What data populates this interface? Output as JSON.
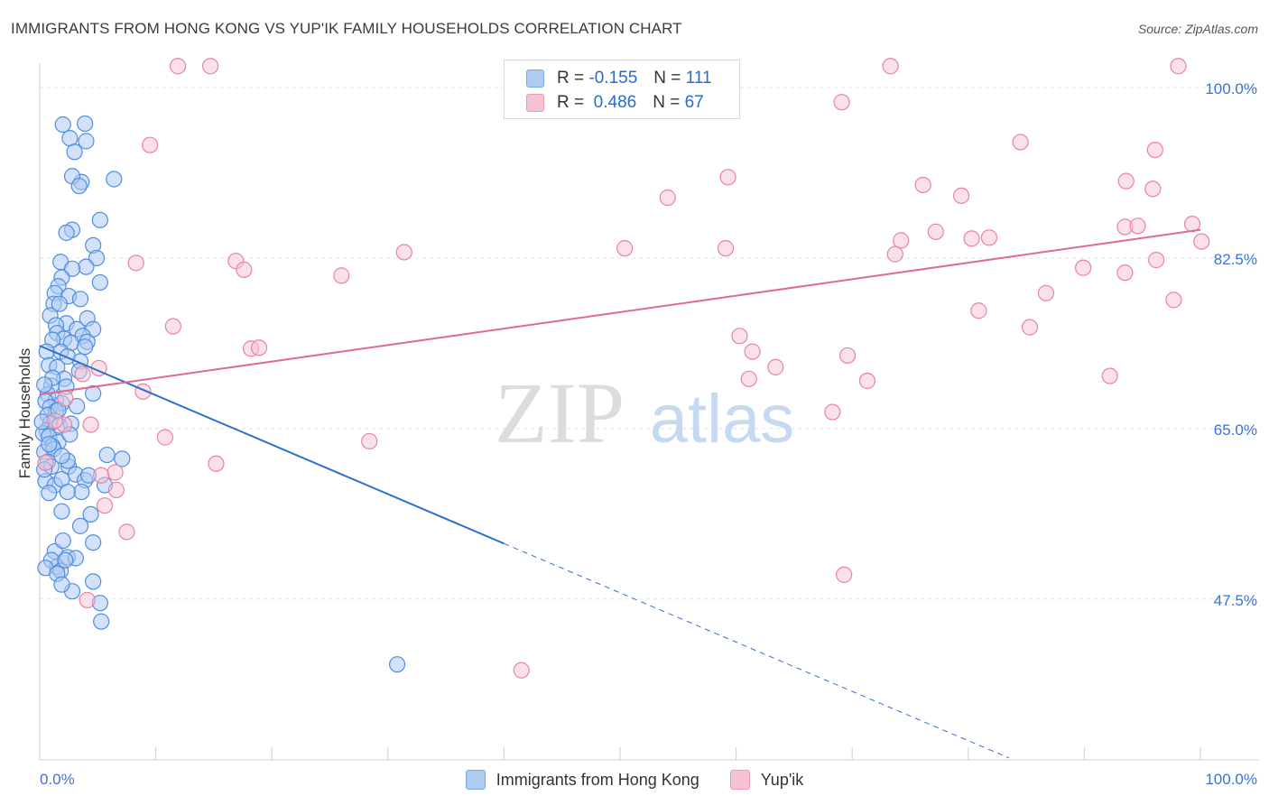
{
  "header": {
    "title": "IMMIGRANTS FROM HONG KONG VS YUP'IK FAMILY HOUSEHOLDS CORRELATION CHART",
    "source": "Source: ZipAtlas.com"
  },
  "watermark": {
    "zip": "ZIP",
    "atlas": "atlas"
  },
  "legend_top": {
    "rows": [
      {
        "r_label": "R =",
        "r_value": "-0.155",
        "n_label": "N =",
        "n_value": "111"
      },
      {
        "r_label": "R =",
        "r_value": "0.486",
        "n_label": "N =",
        "n_value": "67"
      }
    ]
  },
  "colors": {
    "blue_fill": "#aecbf2",
    "blue_stroke": "#4f8ee0",
    "blue_line": "#2f6fd1",
    "pink_fill": "#f6c3d3",
    "pink_stroke": "#e8849f",
    "pink_line": "#e06a90",
    "axis_label": "#3a72d6",
    "grid": "#e2e2e2"
  },
  "chart_data": {
    "type": "scatter",
    "title": "IMMIGRANTS FROM HONG KONG VS YUP'IK FAMILY HOUSEHOLDS CORRELATION CHART",
    "xlabel": "",
    "ylabel": "Family Households",
    "xlim": [
      0,
      100
    ],
    "ylim": [
      31,
      102.5
    ],
    "x_tick_labels": [
      "0.0%",
      "100.0%"
    ],
    "y_ticks": [
      {
        "value": 47.5,
        "label": "47.5%"
      },
      {
        "value": 65.0,
        "label": "65.0%"
      },
      {
        "value": 82.5,
        "label": "82.5%"
      },
      {
        "value": 100.0,
        "label": "100.0%"
      }
    ],
    "series": [
      {
        "name": "Immigrants from Hong Kong",
        "r": -0.155,
        "n": 111,
        "trend": {
          "x0": 0,
          "y0": 73.5,
          "x1": 40,
          "y1": 53.2,
          "dash_x1": 83.5,
          "dash_y1": 31.2
        },
        "points": [
          [
            4,
            94.5
          ],
          [
            3.9,
            96.3
          ],
          [
            2,
            96.2
          ],
          [
            2.6,
            94.8
          ],
          [
            3,
            93.4
          ],
          [
            3.6,
            90.3
          ],
          [
            2.8,
            90.9
          ],
          [
            6.4,
            90.6
          ],
          [
            3.4,
            89.9
          ],
          [
            5.2,
            86.4
          ],
          [
            2.8,
            85.4
          ],
          [
            2.3,
            85.1
          ],
          [
            4.6,
            83.8
          ],
          [
            4.9,
            82.5
          ],
          [
            1.8,
            82.1
          ],
          [
            4,
            81.6
          ],
          [
            2.8,
            81.4
          ],
          [
            1.9,
            80.5
          ],
          [
            1.6,
            79.6
          ],
          [
            5.2,
            80
          ],
          [
            1.3,
            78.9
          ],
          [
            2.5,
            78.6
          ],
          [
            3.5,
            78.3
          ],
          [
            1.2,
            77.8
          ],
          [
            1.7,
            77.8
          ],
          [
            0.9,
            76.6
          ],
          [
            4.1,
            76.3
          ],
          [
            2.3,
            75.8
          ],
          [
            1.4,
            75.6
          ],
          [
            3.2,
            75.2
          ],
          [
            4.6,
            75.2
          ],
          [
            1.5,
            74.8
          ],
          [
            2.1,
            74.2
          ],
          [
            3.7,
            74.5
          ],
          [
            1.1,
            74.1
          ],
          [
            4.1,
            73.9
          ],
          [
            2.7,
            73.8
          ],
          [
            3.9,
            73.4
          ],
          [
            1.8,
            72.9
          ],
          [
            0.6,
            72.9
          ],
          [
            2.4,
            72.4
          ],
          [
            3.5,
            71.9
          ],
          [
            0.8,
            71.5
          ],
          [
            1.5,
            71.3
          ],
          [
            3.4,
            70.9
          ],
          [
            2.1,
            70.1
          ],
          [
            1,
            69.4
          ],
          [
            2.3,
            69.3
          ],
          [
            0.7,
            68.5
          ],
          [
            1.4,
            67.9
          ],
          [
            0.5,
            67.8
          ],
          [
            1.9,
            67.6
          ],
          [
            0.9,
            67.2
          ],
          [
            1.4,
            66.8
          ],
          [
            0.7,
            66.4
          ],
          [
            0.9,
            65.5
          ],
          [
            1.7,
            65.3
          ],
          [
            0.6,
            64.8
          ],
          [
            0.3,
            64.5
          ],
          [
            0.2,
            65.7
          ],
          [
            0.8,
            64.2
          ],
          [
            1.6,
            63.6
          ],
          [
            1.1,
            63.2
          ],
          [
            0.4,
            62.6
          ],
          [
            1.2,
            62.9
          ],
          [
            0.7,
            61.6
          ],
          [
            1,
            61.1
          ],
          [
            2.5,
            61.1
          ],
          [
            3.1,
            60.3
          ],
          [
            0.5,
            59.6
          ],
          [
            1.3,
            59.2
          ],
          [
            3.9,
            59.7
          ],
          [
            5.6,
            59.2
          ],
          [
            3.6,
            58.5
          ],
          [
            1.9,
            56.5
          ],
          [
            4.4,
            56.2
          ],
          [
            3.5,
            55
          ],
          [
            4.6,
            53.3
          ],
          [
            7.1,
            61.9
          ],
          [
            1.9,
            59.8
          ],
          [
            0.8,
            63.4
          ],
          [
            2.4,
            61.7
          ],
          [
            1.5,
            50.8
          ],
          [
            2.4,
            51.8
          ],
          [
            1.3,
            52.4
          ],
          [
            1,
            51.5
          ],
          [
            1.8,
            50.4
          ],
          [
            0.5,
            50.7
          ],
          [
            1.5,
            50.1
          ],
          [
            3.1,
            51.7
          ],
          [
            2.2,
            51.5
          ],
          [
            4.6,
            49.3
          ],
          [
            5.2,
            47.1
          ],
          [
            5.3,
            45.2
          ],
          [
            2.8,
            48.3
          ],
          [
            1.9,
            49
          ],
          [
            2,
            53.5
          ],
          [
            0.8,
            58.4
          ],
          [
            2.4,
            58.5
          ],
          [
            4.2,
            60.2
          ],
          [
            5.8,
            62.3
          ],
          [
            2.7,
            65.5
          ],
          [
            3.2,
            67.3
          ],
          [
            4.6,
            68.6
          ],
          [
            1.1,
            70.2
          ],
          [
            0.4,
            60.8
          ],
          [
            1.6,
            66.9
          ],
          [
            2.6,
            64.4
          ],
          [
            0.4,
            69.5
          ],
          [
            1.9,
            62.2
          ],
          [
            30.8,
            40.8
          ]
        ]
      },
      {
        "name": "Yup'ik",
        "r": 0.486,
        "n": 67,
        "trend": {
          "x0": 0,
          "y0": 68.5,
          "x1": 100,
          "y1": 85.4
        },
        "points": [
          [
            11.9,
            102.2
          ],
          [
            14.7,
            102.2
          ],
          [
            73.3,
            102.2
          ],
          [
            98.1,
            102.2
          ],
          [
            69.1,
            98.5
          ],
          [
            9.5,
            94.1
          ],
          [
            84.5,
            94.4
          ],
          [
            96.1,
            93.6
          ],
          [
            59.3,
            90.8
          ],
          [
            76.1,
            90
          ],
          [
            93.6,
            90.4
          ],
          [
            79.4,
            88.9
          ],
          [
            95.9,
            89.6
          ],
          [
            54.1,
            88.7
          ],
          [
            93.5,
            85.7
          ],
          [
            94.6,
            85.8
          ],
          [
            77.2,
            85.2
          ],
          [
            81.8,
            84.6
          ],
          [
            80.3,
            84.5
          ],
          [
            99.3,
            86
          ],
          [
            74.2,
            84.3
          ],
          [
            100.1,
            84.2
          ],
          [
            31.4,
            83.1
          ],
          [
            50.4,
            83.5
          ],
          [
            59.1,
            83.5
          ],
          [
            73.7,
            82.9
          ],
          [
            16.9,
            82.2
          ],
          [
            8.3,
            82
          ],
          [
            17.6,
            81.3
          ],
          [
            89.9,
            81.5
          ],
          [
            93.5,
            81
          ],
          [
            96.2,
            82.3
          ],
          [
            26,
            80.7
          ],
          [
            86.7,
            78.9
          ],
          [
            97.7,
            78.2
          ],
          [
            80.9,
            77.1
          ],
          [
            85.3,
            75.4
          ],
          [
            11.5,
            75.5
          ],
          [
            18.2,
            73.2
          ],
          [
            18.9,
            73.3
          ],
          [
            60.3,
            74.5
          ],
          [
            69.6,
            72.5
          ],
          [
            61.4,
            72.9
          ],
          [
            63.4,
            71.3
          ],
          [
            92.2,
            70.4
          ],
          [
            61.1,
            70.1
          ],
          [
            71.3,
            69.9
          ],
          [
            5.1,
            71.2
          ],
          [
            3.7,
            70.6
          ],
          [
            8.9,
            68.8
          ],
          [
            68.3,
            66.7
          ],
          [
            4.4,
            65.4
          ],
          [
            2.1,
            65.4
          ],
          [
            10.8,
            64.1
          ],
          [
            15.2,
            61.4
          ],
          [
            28.4,
            63.7
          ],
          [
            6.5,
            60.5
          ],
          [
            5.3,
            60.2
          ],
          [
            6.6,
            58.7
          ],
          [
            5.6,
            57.1
          ],
          [
            7.5,
            54.4
          ],
          [
            69.3,
            50
          ],
          [
            4.1,
            47.4
          ],
          [
            41.5,
            40.2
          ],
          [
            1.3,
            65.8
          ],
          [
            0.5,
            61.5
          ],
          [
            2.2,
            68.1
          ]
        ]
      }
    ]
  },
  "legend_bottom": {
    "items": [
      {
        "label": "Immigrants from Hong Kong"
      },
      {
        "label": "Yup'ik"
      }
    ]
  }
}
